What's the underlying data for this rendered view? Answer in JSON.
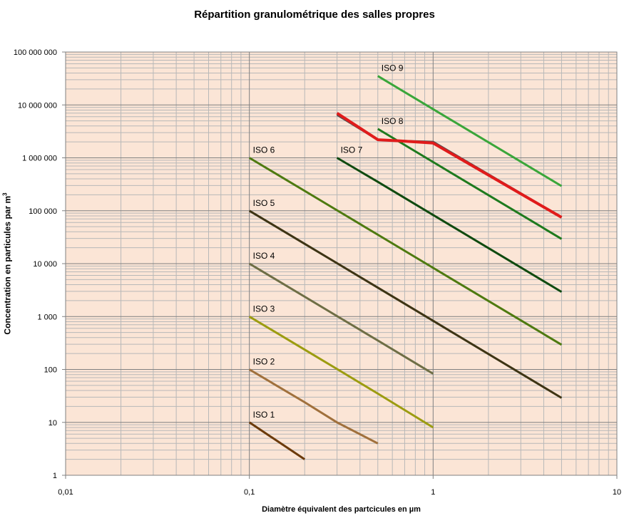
{
  "chart_data": {
    "type": "line",
    "title": "Répartition granulométrique des salles propres",
    "xlabel": "Diamètre équivalent des partcicules en µm",
    "ylabel_main": "Concentration en particules par m",
    "ylabel_sup": "3",
    "x_scale": "log",
    "y_scale": "log",
    "xlim": [
      0.01,
      10
    ],
    "ylim": [
      1,
      100000000
    ],
    "x_ticks": [
      {
        "value": 0.01,
        "label": "0,01"
      },
      {
        "value": 0.1,
        "label": "0,1"
      },
      {
        "value": 1,
        "label": "1"
      },
      {
        "value": 10,
        "label": "10"
      }
    ],
    "y_ticks": [
      {
        "value": 1,
        "label": "1"
      },
      {
        "value": 10,
        "label": "10"
      },
      {
        "value": 100,
        "label": "100"
      },
      {
        "value": 1000,
        "label": "1 000"
      },
      {
        "value": 10000,
        "label": "10 000"
      },
      {
        "value": 100000,
        "label": "100 000"
      },
      {
        "value": 1000000,
        "label": "1 000 000"
      },
      {
        "value": 10000000,
        "label": "10 000 000"
      },
      {
        "value": 100000000,
        "label": "100 000 000"
      }
    ],
    "grid": true,
    "legend": "none",
    "colors": {
      "plot_background": "#fbe5d6",
      "grid_major": "#808080",
      "grid_minor": "#b8b8b8"
    },
    "series": [
      {
        "name": "ISO 1",
        "color": "#6b3a0a",
        "x": [
          0.1,
          0.2
        ],
        "y": [
          10,
          2
        ]
      },
      {
        "name": "ISO 2",
        "color": "#a0703c",
        "x": [
          0.1,
          0.2,
          0.3,
          0.5
        ],
        "y": [
          100,
          24,
          10,
          4
        ]
      },
      {
        "name": "ISO 3",
        "color": "#9c9c10",
        "x": [
          0.1,
          0.2,
          0.3,
          0.5,
          1
        ],
        "y": [
          1000,
          237,
          102,
          35,
          8
        ]
      },
      {
        "name": "ISO 4",
        "color": "#6e6e45",
        "x": [
          0.1,
          0.2,
          0.3,
          0.5,
          1
        ],
        "y": [
          10000,
          2370,
          1020,
          352,
          83
        ]
      },
      {
        "name": "ISO 5",
        "color": "#3d3414",
        "x": [
          0.1,
          0.2,
          0.3,
          0.5,
          1,
          5
        ],
        "y": [
          100000,
          23700,
          10200,
          3520,
          832,
          29
        ]
      },
      {
        "name": "ISO 6",
        "color": "#4e7a10",
        "x": [
          0.1,
          0.2,
          0.3,
          0.5,
          1,
          5
        ],
        "y": [
          1000000,
          237000,
          102000,
          35200,
          8320,
          293
        ]
      },
      {
        "name": "ISO 7",
        "color": "#0f4a0f",
        "x": [
          0.3,
          0.5,
          1,
          5
        ],
        "y": [
          1000000,
          352000,
          83200,
          2930
        ]
      },
      {
        "name": "ISO 8",
        "color": "#1e7a1e",
        "x": [
          0.5,
          1,
          5
        ],
        "y": [
          3520000,
          832000,
          29300
        ]
      },
      {
        "name": "ISO 9",
        "color": "#3aa63a",
        "x": [
          0.5,
          1,
          5
        ],
        "y": [
          35200000,
          8320000,
          293000
        ]
      },
      {
        "name": "",
        "color": "#505050",
        "x": [
          0.3,
          0.5,
          0.65,
          1,
          5
        ],
        "y": [
          6500000,
          2200000,
          2100000,
          2000000,
          75000
        ]
      },
      {
        "name": "",
        "color": "#e01b1b",
        "x": [
          0.3,
          0.5,
          0.65,
          1,
          5
        ],
        "y": [
          7000000,
          2200000,
          2100000,
          1900000,
          75000
        ]
      }
    ]
  }
}
